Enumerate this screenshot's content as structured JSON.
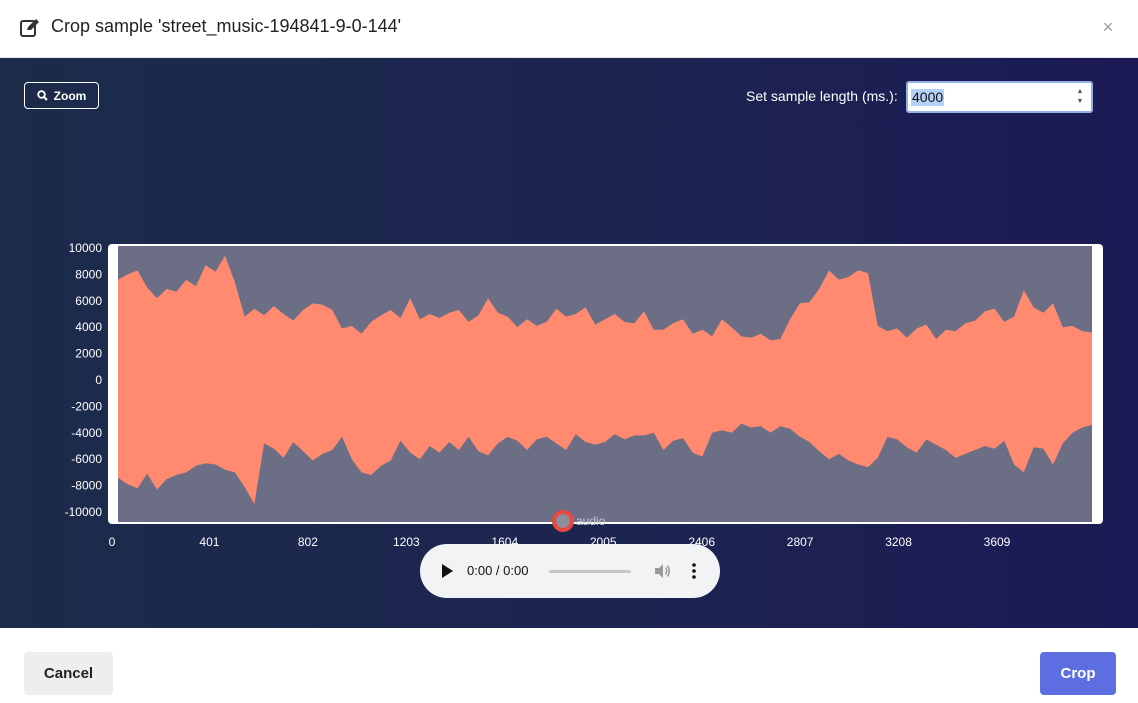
{
  "dialog": {
    "title": "Crop sample 'street_music-194841-9-0-144'",
    "close_label": "×"
  },
  "toolbar": {
    "zoom_label": "Zoom",
    "sample_length_label": "Set sample length (ms.):",
    "sample_length_value": "4000"
  },
  "chart_data": {
    "type": "area",
    "series": [
      {
        "name": "audio",
        "color": "#ff8a70"
      }
    ],
    "xlim": [
      0,
      4000
    ],
    "ylim": [
      -10000,
      10000
    ],
    "x_ticks": [
      "0",
      "401",
      "802",
      "1203",
      "1604",
      "2005",
      "2406",
      "2807",
      "3208",
      "3609"
    ],
    "y_ticks": [
      "10000",
      "8000",
      "6000",
      "4000",
      "2000",
      "0",
      "-2000",
      "-4000",
      "-6000",
      "-8000",
      "-10000"
    ],
    "selection_range": [
      0,
      4000
    ],
    "envelope": {
      "x": [
        0,
        40,
        80,
        120,
        160,
        200,
        240,
        280,
        320,
        360,
        400,
        440,
        480,
        520,
        560,
        600,
        640,
        680,
        720,
        760,
        800,
        840,
        880,
        920,
        960,
        1000,
        1040,
        1080,
        1120,
        1160,
        1200,
        1240,
        1280,
        1320,
        1360,
        1400,
        1440,
        1480,
        1520,
        1560,
        1600,
        1640,
        1680,
        1720,
        1760,
        1800,
        1840,
        1880,
        1920,
        1960,
        2000,
        2040,
        2080,
        2120,
        2160,
        2200,
        2240,
        2280,
        2320,
        2360,
        2400,
        2440,
        2480,
        2520,
        2560,
        2600,
        2640,
        2680,
        2720,
        2760,
        2800,
        2840,
        2880,
        2920,
        2960,
        3000,
        3040,
        3080,
        3120,
        3160,
        3200,
        3240,
        3280,
        3320,
        3360,
        3400,
        3440,
        3480,
        3520,
        3560,
        3600,
        3640,
        3680,
        3720,
        3760,
        3800,
        3840,
        3880,
        3920,
        3960,
        4000
      ],
      "max": [
        7600,
        8000,
        8300,
        7000,
        6200,
        6900,
        6700,
        7600,
        7100,
        8700,
        8200,
        9400,
        7400,
        4800,
        5400,
        4900,
        5600,
        5000,
        4500,
        5300,
        5800,
        5700,
        5300,
        3900,
        4100,
        3500,
        4400,
        4900,
        5300,
        4700,
        6200,
        4600,
        5000,
        4700,
        5100,
        5300,
        4400,
        4900,
        6200,
        5100,
        4800,
        4000,
        4600,
        4100,
        4400,
        5400,
        4800,
        5000,
        5500,
        4200,
        4600,
        5000,
        4400,
        4300,
        5200,
        3800,
        3800,
        4300,
        4600,
        3500,
        3800,
        3300,
        4600,
        4000,
        3300,
        3200,
        3500,
        3000,
        3100,
        4600,
        5800,
        5900,
        6900,
        8300,
        7600,
        7800,
        8300,
        8100,
        4100,
        3700,
        3900,
        3200,
        3900,
        4200,
        3100,
        3800,
        3700,
        4300,
        4500,
        5200,
        5400,
        4400,
        4800,
        6800,
        5500,
        5100,
        5800,
        4000,
        4100,
        3700,
        3600
      ],
      "min": [
        -7400,
        -7900,
        -8200,
        -7100,
        -8300,
        -7500,
        -7200,
        -7000,
        -6500,
        -6300,
        -6400,
        -6800,
        -7000,
        -8100,
        -9400,
        -4800,
        -5200,
        -5900,
        -4700,
        -5400,
        -6100,
        -5600,
        -5300,
        -4300,
        -6000,
        -7000,
        -7200,
        -6500,
        -6100,
        -4600,
        -5500,
        -6000,
        -5000,
        -5500,
        -4700,
        -5300,
        -4300,
        -5400,
        -5700,
        -4800,
        -4300,
        -4600,
        -5300,
        -4500,
        -4300,
        -4800,
        -5300,
        -4100,
        -4700,
        -4900,
        -4700,
        -4100,
        -4500,
        -4200,
        -4200,
        -4000,
        -5300,
        -4600,
        -4400,
        -5500,
        -5800,
        -4000,
        -3800,
        -4000,
        -3300,
        -3600,
        -3500,
        -4000,
        -3500,
        -3700,
        -4300,
        -4700,
        -5400,
        -6000,
        -5600,
        -6100,
        -6400,
        -6600,
        -5900,
        -4300,
        -4500,
        -5100,
        -5500,
        -4500,
        -4900,
        -5300,
        -5900,
        -5600,
        -5300,
        -5000,
        -5200,
        -4600,
        -6400,
        -7000,
        -5100,
        -5200,
        -6400,
        -4800,
        -4000,
        -3600,
        -3400
      ]
    }
  },
  "player": {
    "time": "0:00 / 0:00"
  },
  "footer": {
    "cancel_label": "Cancel",
    "crop_label": "Crop"
  }
}
